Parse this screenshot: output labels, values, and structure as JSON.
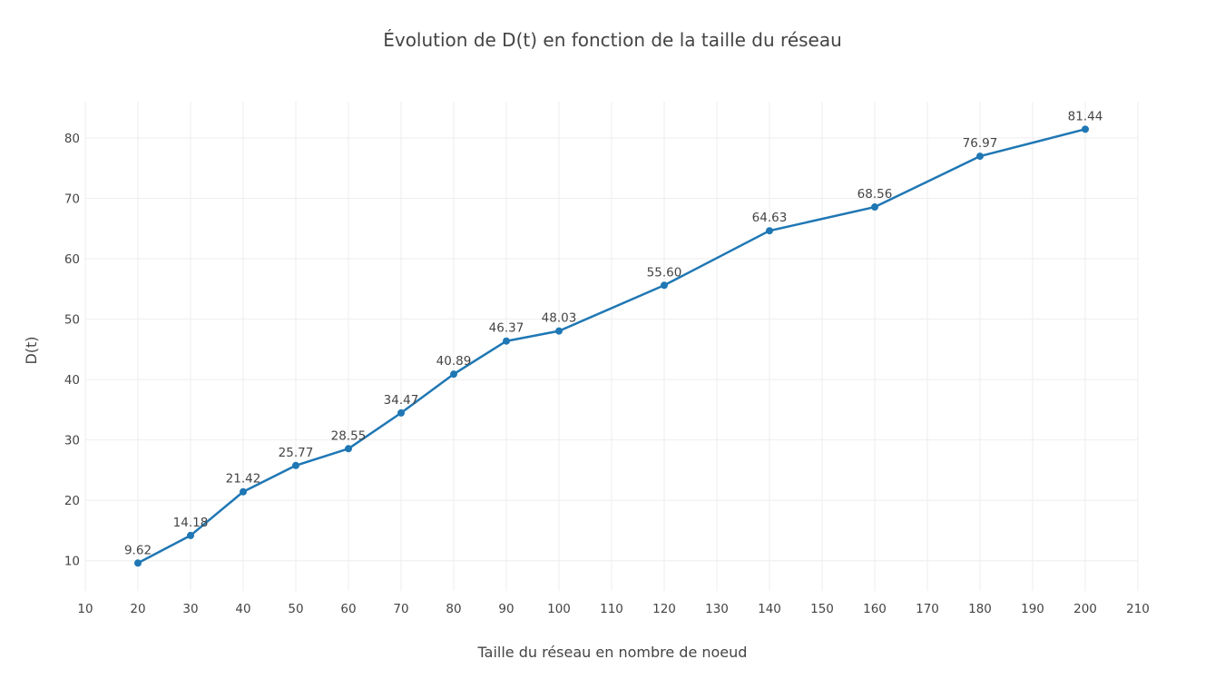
{
  "chart_data": {
    "type": "line",
    "title": "Évolution de D(t) en fonction de la taille du réseau",
    "xlabel": "Taille du réseau en nombre de noeud",
    "ylabel": "D(t)",
    "xlim": [
      10,
      210
    ],
    "ylim": [
      5,
      86
    ],
    "x_ticks": [
      "10",
      "20",
      "30",
      "40",
      "50",
      "60",
      "70",
      "80",
      "90",
      "100",
      "110",
      "120",
      "130",
      "140",
      "150",
      "160",
      "170",
      "180",
      "190",
      "200",
      "210"
    ],
    "y_ticks": [
      "10",
      "20",
      "30",
      "40",
      "50",
      "60",
      "70",
      "80"
    ],
    "grid": true,
    "legend": "none",
    "series": [
      {
        "color": "#1f77b4",
        "x": [
          20,
          30,
          40,
          50,
          60,
          70,
          80,
          90,
          100,
          120,
          140,
          160,
          180,
          200
        ],
        "y": [
          9.62,
          14.18,
          21.42,
          25.77,
          28.55,
          34.47,
          40.89,
          46.37,
          48.03,
          55.6,
          64.63,
          68.56,
          76.97,
          81.44
        ],
        "labels": [
          "9.62",
          "14.18",
          "21.42",
          "25.77",
          "28.55",
          "34.47",
          "40.89",
          "46.37",
          "48.03",
          "55.60",
          "64.63",
          "68.56",
          "76.97",
          "81.44"
        ]
      }
    ]
  }
}
